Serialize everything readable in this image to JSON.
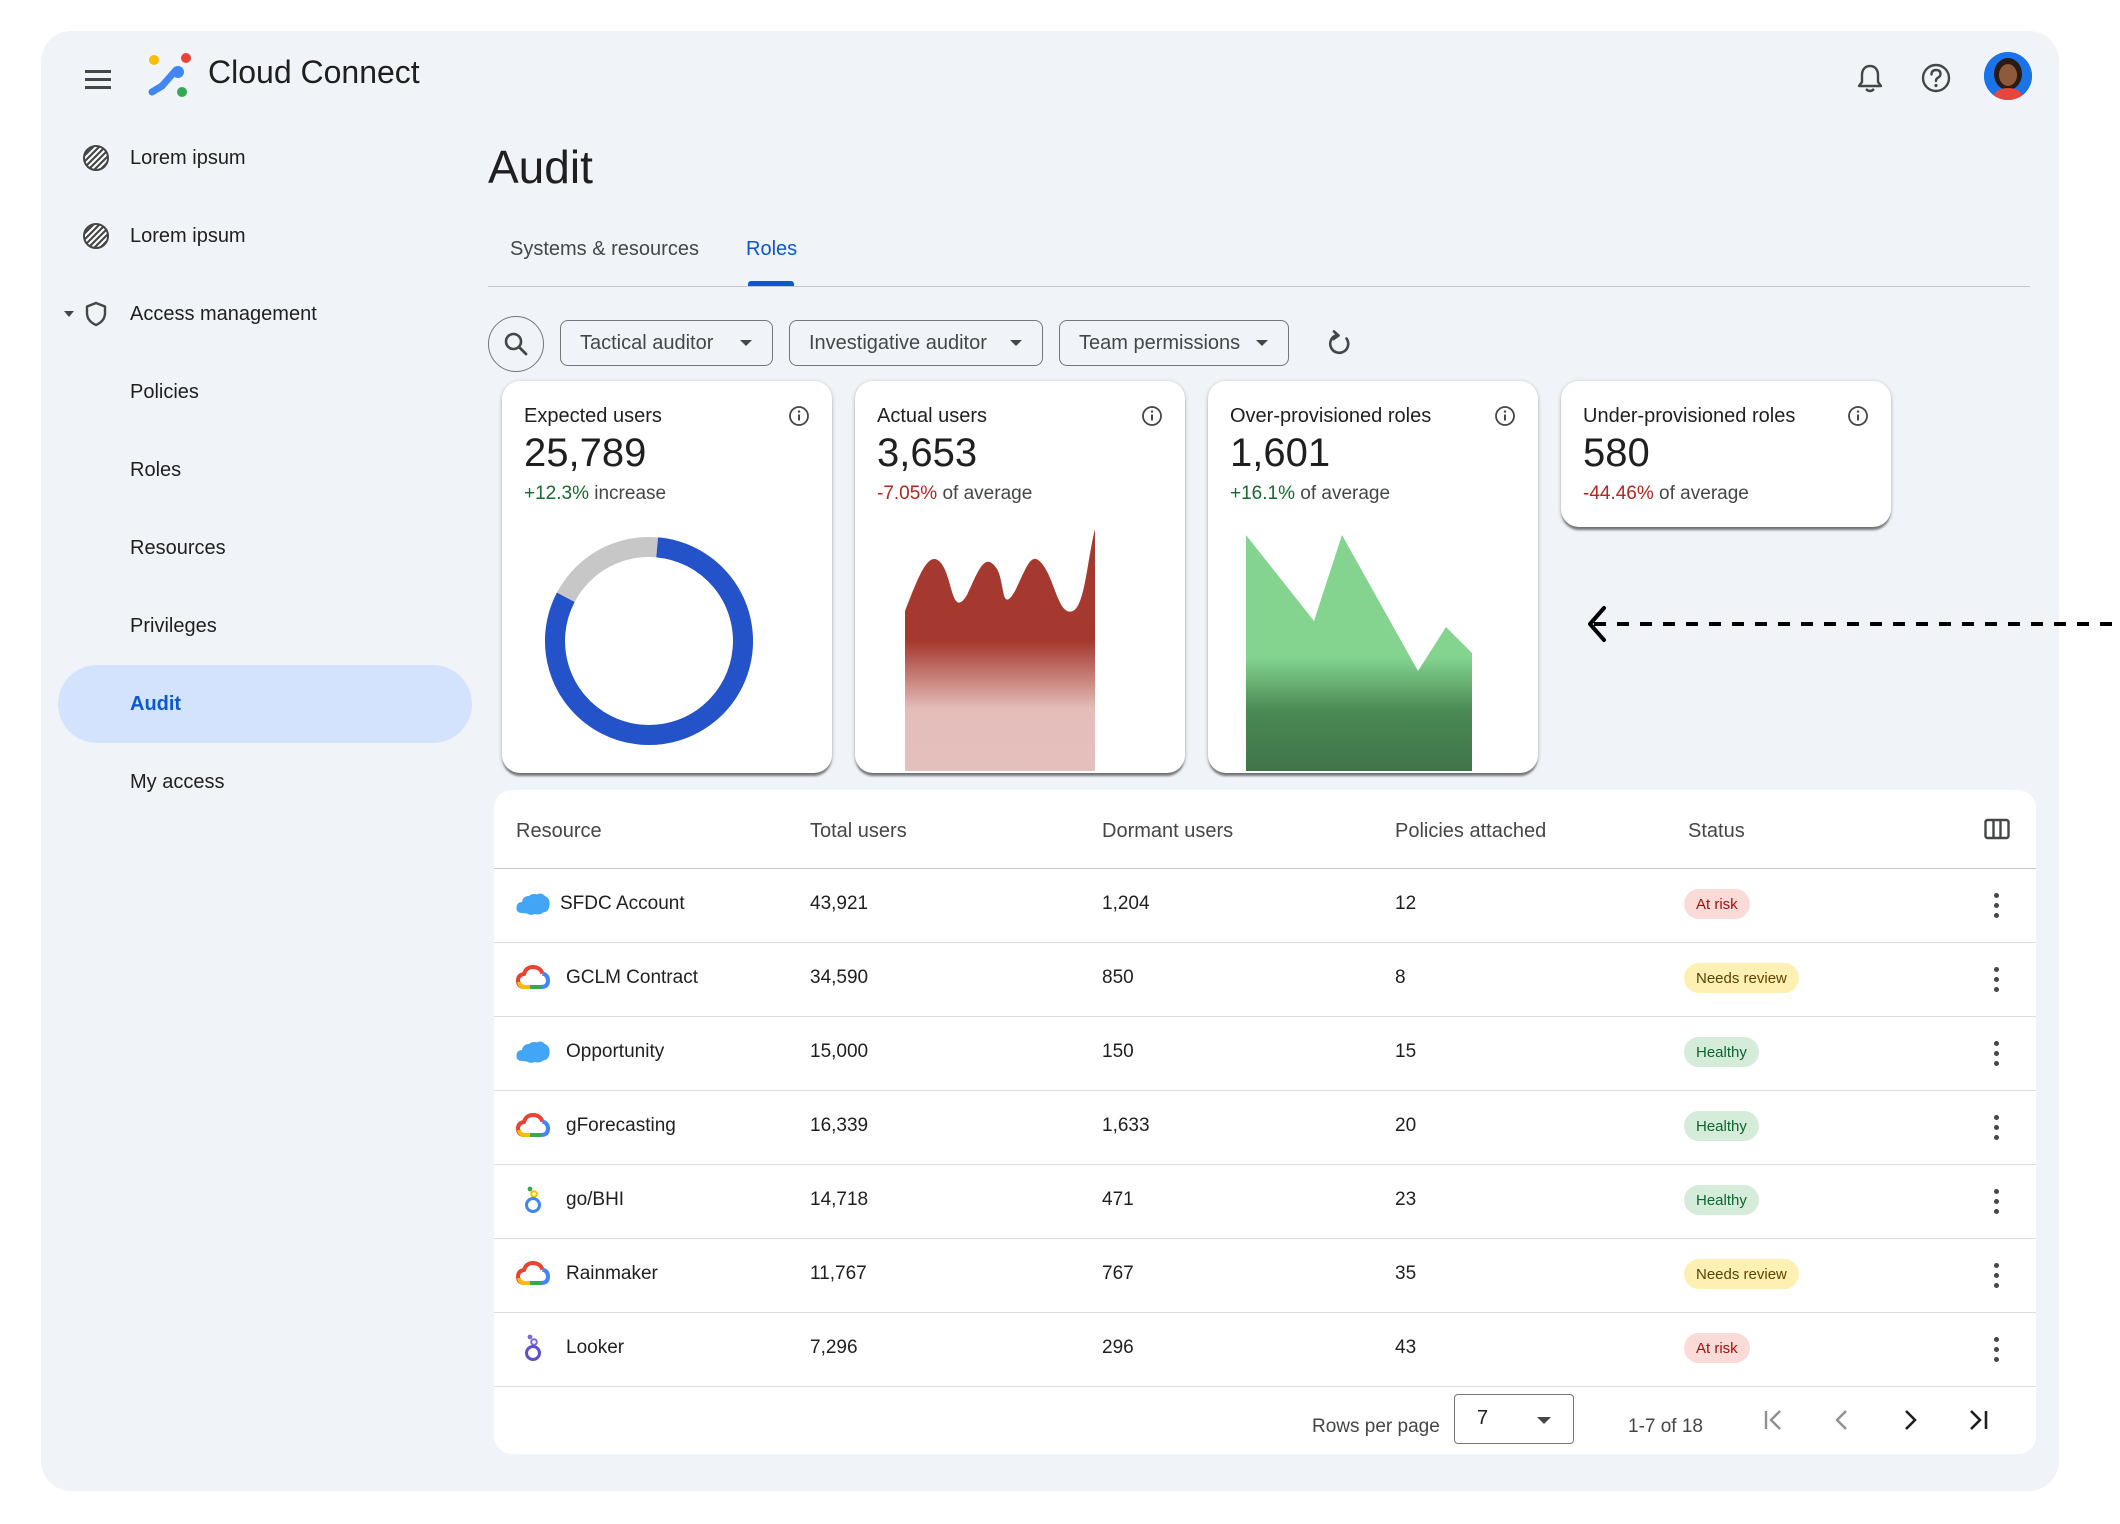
{
  "app": {
    "title": "Cloud Connect"
  },
  "header": {
    "icons": [
      "menu-icon",
      "bell-icon",
      "help-icon",
      "avatar"
    ]
  },
  "sidebar": {
    "items": [
      {
        "label": "Lorem ipsum",
        "icon": "placeholder-icon"
      },
      {
        "label": "Lorem ipsum",
        "icon": "placeholder-icon"
      },
      {
        "label": "Access management",
        "icon": "shield-icon",
        "expanded": true
      },
      {
        "label": "Policies"
      },
      {
        "label": "Roles"
      },
      {
        "label": "Resources"
      },
      {
        "label": "Privileges"
      },
      {
        "label": "Audit",
        "active": true
      },
      {
        "label": "My access"
      }
    ]
  },
  "main": {
    "title": "Audit",
    "tabs": [
      {
        "label": "Systems & resources",
        "active": false
      },
      {
        "label": "Roles",
        "active": true
      }
    ],
    "filters": [
      {
        "label": "Tactical auditor"
      },
      {
        "label": "Investigative auditor"
      },
      {
        "label": "Team permissions"
      }
    ]
  },
  "cards": [
    {
      "title": "Expected users",
      "value": "25,789",
      "delta": "+12.3%",
      "delta_text": " increase"
    },
    {
      "title": "Actual users",
      "value": "3,653",
      "delta": "-7.05%",
      "delta_text": " of average"
    },
    {
      "title": "Over-provisioned roles",
      "value": "1,601",
      "delta": "+16.1%",
      "delta_text": " of average"
    },
    {
      "title": "Under-provisioned roles",
      "value": "580",
      "delta": "-44.46%",
      "delta_text": " of average"
    }
  ],
  "colors": {
    "accent": "#0b57d0",
    "donut": "#2352c9",
    "red_area": "#a5392f",
    "green_area": "#84d48f",
    "positive": "#146c2e",
    "negative": "#b3261e"
  },
  "table": {
    "headers": [
      "Resource",
      "Total users",
      "Dormant users",
      "Policies attached",
      "Status"
    ],
    "rows": [
      {
        "resource": "SFDC Account",
        "icon": "salesforce-cloud-icon",
        "total": "43,921",
        "dormant": "1,204",
        "policies": "12",
        "status": "At risk",
        "status_kind": "risk"
      },
      {
        "resource": "GCLM Contract",
        "icon": "google-cloud-icon",
        "total": "34,590",
        "dormant": "850",
        "policies": "8",
        "status": "Needs review",
        "status_kind": "review"
      },
      {
        "resource": "Opportunity",
        "icon": "salesforce-cloud-icon",
        "total": "15,000",
        "dormant": "150",
        "policies": "15",
        "status": "Healthy",
        "status_kind": "healthy"
      },
      {
        "resource": "gForecasting",
        "icon": "google-cloud-icon",
        "total": "16,339",
        "dormant": "1,633",
        "policies": "20",
        "status": "Healthy",
        "status_kind": "healthy"
      },
      {
        "resource": "go/BHI",
        "icon": "looker-icon",
        "total": "14,718",
        "dormant": "471",
        "policies": "23",
        "status": "Healthy",
        "status_kind": "healthy"
      },
      {
        "resource": "Rainmaker",
        "icon": "google-cloud-icon",
        "total": "11,767",
        "dormant": "767",
        "policies": "35",
        "status": "Needs review",
        "status_kind": "review"
      },
      {
        "resource": "Looker",
        "icon": "looker-purple-icon",
        "total": "7,296",
        "dormant": "296",
        "policies": "43",
        "status": "At risk",
        "status_kind": "risk"
      }
    ],
    "footer": {
      "rows_per_page_label": "Rows per page",
      "rows_per_page_value": "7",
      "range": "1-7 of 18"
    }
  }
}
